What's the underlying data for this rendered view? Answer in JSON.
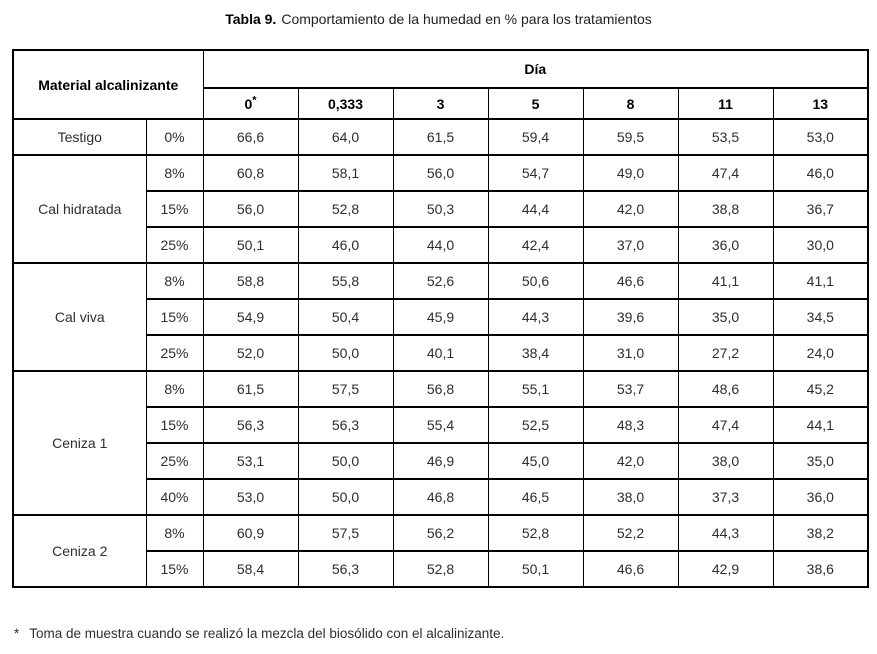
{
  "caption": {
    "label": "Tabla 9.",
    "text": "Comportamiento de la humedad en % para los tratamientos"
  },
  "table": {
    "corner_header": "Material alcalinizante",
    "day_header": "Día",
    "day_columns": [
      "0*",
      "0,333",
      "3",
      "5",
      "8",
      "11",
      "13"
    ],
    "groups": [
      {
        "material": "Testigo",
        "rows": [
          {
            "dose": "0%",
            "values": [
              "66,6",
              "64,0",
              "61,5",
              "59,4",
              "59,5",
              "53,5",
              "53,0"
            ]
          }
        ]
      },
      {
        "material": "Cal hidratada",
        "rows": [
          {
            "dose": "8%",
            "values": [
              "60,8",
              "58,1",
              "56,0",
              "54,7",
              "49,0",
              "47,4",
              "46,0"
            ]
          },
          {
            "dose": "15%",
            "values": [
              "56,0",
              "52,8",
              "50,3",
              "44,4",
              "42,0",
              "38,8",
              "36,7"
            ]
          },
          {
            "dose": "25%",
            "values": [
              "50,1",
              "46,0",
              "44,0",
              "42,4",
              "37,0",
              "36,0",
              "30,0"
            ]
          }
        ]
      },
      {
        "material": "Cal viva",
        "rows": [
          {
            "dose": "8%",
            "values": [
              "58,8",
              "55,8",
              "52,6",
              "50,6",
              "46,6",
              "41,1",
              "41,1"
            ]
          },
          {
            "dose": "15%",
            "values": [
              "54,9",
              "50,4",
              "45,9",
              "44,3",
              "39,6",
              "35,0",
              "34,5"
            ]
          },
          {
            "dose": "25%",
            "values": [
              "52,0",
              "50,0",
              "40,1",
              "38,4",
              "31,0",
              "27,2",
              "24,0"
            ]
          }
        ]
      },
      {
        "material": "Ceniza 1",
        "rows": [
          {
            "dose": "8%",
            "values": [
              "61,5",
              "57,5",
              "56,8",
              "55,1",
              "53,7",
              "48,6",
              "45,2"
            ]
          },
          {
            "dose": "15%",
            "values": [
              "56,3",
              "56,3",
              "55,4",
              "52,5",
              "48,3",
              "47,4",
              "44,1"
            ]
          },
          {
            "dose": "25%",
            "values": [
              "53,1",
              "50,0",
              "46,9",
              "45,0",
              "42,0",
              "38,0",
              "35,0"
            ]
          },
          {
            "dose": "40%",
            "values": [
              "53,0",
              "50,0",
              "46,8",
              "46,5",
              "38,0",
              "37,3",
              "36,0"
            ]
          }
        ]
      },
      {
        "material": "Ceniza 2",
        "rows": [
          {
            "dose": "8%",
            "values": [
              "60,9",
              "57,5",
              "56,2",
              "52,8",
              "52,2",
              "44,3",
              "38,2"
            ]
          },
          {
            "dose": "15%",
            "values": [
              "58,4",
              "56,3",
              "52,8",
              "50,1",
              "46,6",
              "42,9",
              "38,6"
            ]
          }
        ]
      }
    ]
  },
  "footnote": {
    "marker": "*",
    "text": "Toma de muestra cuando se realizó la mezcla del biosólido con el alcalinizante."
  },
  "colors": {
    "border": "#000000",
    "text": "#2e2e2e",
    "header_text": "#000000",
    "background": "#ffffff"
  }
}
